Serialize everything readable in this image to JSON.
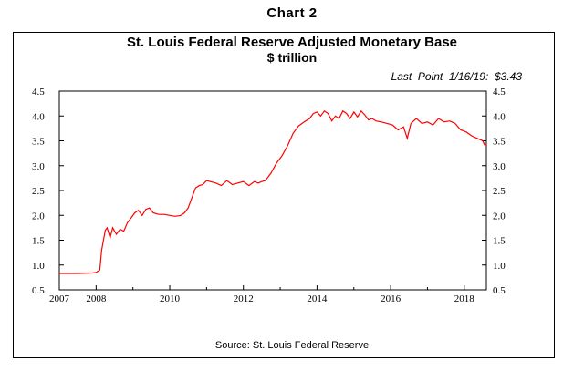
{
  "header": {
    "chart_label": "Chart 2"
  },
  "chart_data": {
    "type": "line",
    "title": "St. Louis Federal Reserve Adjusted Monetary Base",
    "subtitle": "$ trillion",
    "annotation": "Last  Point  1/16/19:  $3.43",
    "source": "Source: St. Louis Federal Reserve",
    "xlabel": "",
    "ylabel": "",
    "xlim": [
      2007,
      2018.6
    ],
    "ylim": [
      0.5,
      4.5
    ],
    "x_ticks": [
      2007,
      2008,
      2010,
      2012,
      2014,
      2016,
      2018
    ],
    "y_ticks_left": [
      "4.5",
      "4.0",
      "3.5",
      "3.0",
      "2.5",
      "2.0",
      "1.5",
      "1.0",
      "0.5"
    ],
    "y_ticks_right": [
      "4.5",
      "4.0",
      "3.5",
      "3.0",
      "2.5",
      "2.0",
      "1.5",
      "1.0",
      "0.5"
    ],
    "series": [
      {
        "name": "Adjusted Monetary Base",
        "color": "#ff0000",
        "x": [
          2007.0,
          2007.5,
          2007.9,
          2008.0,
          2008.1,
          2008.15,
          2008.25,
          2008.3,
          2008.38,
          2008.45,
          2008.55,
          2008.65,
          2008.75,
          2008.85,
          2008.95,
          2009.05,
          2009.15,
          2009.25,
          2009.35,
          2009.45,
          2009.55,
          2009.7,
          2009.85,
          2010.0,
          2010.15,
          2010.3,
          2010.4,
          2010.5,
          2010.6,
          2010.7,
          2010.8,
          2010.9,
          2011.0,
          2011.1,
          2011.25,
          2011.4,
          2011.55,
          2011.7,
          2011.85,
          2012.0,
          2012.15,
          2012.3,
          2012.4,
          2012.5,
          2012.6,
          2012.75,
          2012.9,
          2013.05,
          2013.2,
          2013.35,
          2013.5,
          2013.65,
          2013.8,
          2013.9,
          2014.0,
          2014.1,
          2014.2,
          2014.3,
          2014.4,
          2014.5,
          2014.6,
          2014.7,
          2014.8,
          2014.9,
          2015.0,
          2015.1,
          2015.2,
          2015.3,
          2015.4,
          2015.5,
          2015.6,
          2015.75,
          2015.9,
          2016.05,
          2016.2,
          2016.35,
          2016.45,
          2016.55,
          2016.7,
          2016.85,
          2017.0,
          2017.15,
          2017.3,
          2017.45,
          2017.6,
          2017.75,
          2017.9,
          2018.05,
          2018.2,
          2018.35,
          2018.5,
          2018.55,
          2018.6
        ],
        "y": [
          0.83,
          0.83,
          0.84,
          0.85,
          0.9,
          1.3,
          1.7,
          1.75,
          1.55,
          1.75,
          1.62,
          1.72,
          1.68,
          1.85,
          1.95,
          2.05,
          2.1,
          2.0,
          2.12,
          2.15,
          2.05,
          2.02,
          2.02,
          2.0,
          1.98,
          2.0,
          2.05,
          2.15,
          2.35,
          2.55,
          2.6,
          2.62,
          2.7,
          2.68,
          2.65,
          2.6,
          2.7,
          2.62,
          2.65,
          2.68,
          2.6,
          2.68,
          2.65,
          2.68,
          2.7,
          2.85,
          3.05,
          3.2,
          3.4,
          3.65,
          3.8,
          3.88,
          3.95,
          4.05,
          4.08,
          4.0,
          4.1,
          4.05,
          3.9,
          4.0,
          3.95,
          4.1,
          4.05,
          3.95,
          4.08,
          3.98,
          4.1,
          4.02,
          3.92,
          3.95,
          3.9,
          3.88,
          3.85,
          3.82,
          3.72,
          3.78,
          3.55,
          3.85,
          3.95,
          3.85,
          3.88,
          3.82,
          3.95,
          3.88,
          3.9,
          3.85,
          3.72,
          3.68,
          3.6,
          3.55,
          3.5,
          3.42,
          3.43
        ]
      }
    ]
  }
}
